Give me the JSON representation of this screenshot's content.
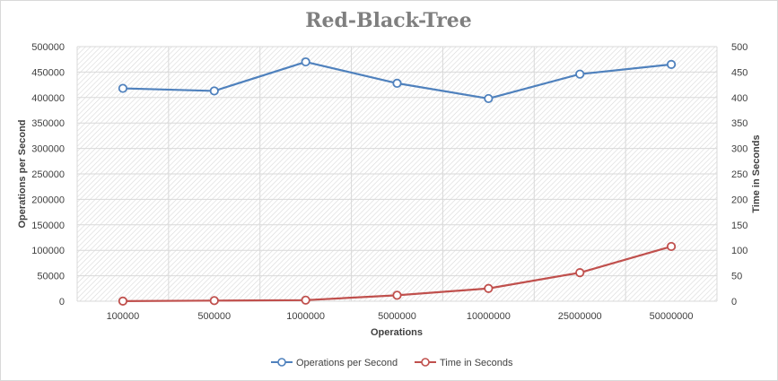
{
  "chart_data": {
    "type": "line",
    "title": "Red-Black-Tree",
    "xlabel": "Operations",
    "ylabel": "Operations per Second",
    "y2label": "Time in Seconds",
    "categories": [
      "100000",
      "500000",
      "1000000",
      "5000000",
      "10000000",
      "25000000",
      "50000000"
    ],
    "ylim": [
      0,
      500000
    ],
    "y2lim": [
      0,
      500
    ],
    "yticks": [
      "0",
      "50000",
      "100000",
      "150000",
      "200000",
      "250000",
      "300000",
      "350000",
      "400000",
      "450000",
      "500000"
    ],
    "y2ticks": [
      "0",
      "50",
      "100",
      "150",
      "200",
      "250",
      "300",
      "350",
      "400",
      "450",
      "500"
    ],
    "series": [
      {
        "name": "Operations per Second",
        "axis": "left",
        "color": "#4f81bd",
        "values": [
          418000,
          413000,
          470000,
          428000,
          398000,
          446000,
          465000
        ]
      },
      {
        "name": "Time in Seconds",
        "axis": "right",
        "color": "#c0504d",
        "values": [
          0.24,
          1.2,
          2.1,
          11.7,
          25.1,
          56.1,
          107.5
        ]
      }
    ],
    "grid": true,
    "legend_position": "bottom"
  }
}
